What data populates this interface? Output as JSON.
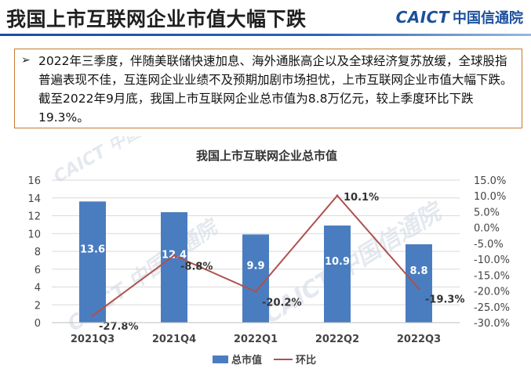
{
  "header": {
    "title": "我国上市互联网企业市值大幅下跌",
    "logo_en": "CAICT",
    "logo_cn": "中国信通院"
  },
  "summary": {
    "bullet": "➢",
    "text": "2022年三季度，伴随美联储快速加息、海外通胀高企以及全球经济复苏放缓，全球股指普遍表现不佳，互连网企业业绩不及预期加剧市场担忧，上市互联网企业市值大幅下跌。截至2022年9月底，我国上市互联网企业总市值为8.8万亿元，较上季度环比下跌19.3%。"
  },
  "watermarks": [
    "CAICT 中国信通院",
    "CAICT 中国信通院",
    "CAICT 中国信通院"
  ],
  "chart_data": {
    "type": "bar",
    "title": "我国上市互联网企业总市值",
    "categories": [
      "2021Q3",
      "2021Q4",
      "2022Q1",
      "2022Q2",
      "2022Q3"
    ],
    "series": [
      {
        "name": "总市值",
        "type": "bar",
        "axis": "left",
        "color": "#4a7dbf",
        "values": [
          13.6,
          12.4,
          9.9,
          10.9,
          8.8
        ],
        "labels": [
          "13.6",
          "12.4",
          "9.9",
          "10.9",
          "8.8"
        ]
      },
      {
        "name": "环比",
        "type": "line",
        "axis": "right",
        "color": "#b0504c",
        "values": [
          -27.8,
          -8.8,
          -20.2,
          10.1,
          -19.3
        ],
        "labels": [
          "-27.8%",
          "-8.8%",
          "-20.2%",
          "10.1%",
          "-19.3%"
        ]
      }
    ],
    "y_left": {
      "min": 0,
      "max": 16,
      "ticks": [
        "0",
        "2",
        "4",
        "6",
        "8",
        "10",
        "12",
        "14",
        "16"
      ]
    },
    "y_right": {
      "min": -30,
      "max": 15,
      "ticks": [
        "-30.0%",
        "-25.0%",
        "-20.0%",
        "-15.0%",
        "-10.0%",
        "-5.0%",
        "0.0%",
        "5.0%",
        "10.0%",
        "15.0%"
      ]
    },
    "grid": true,
    "legend": "bottom"
  }
}
